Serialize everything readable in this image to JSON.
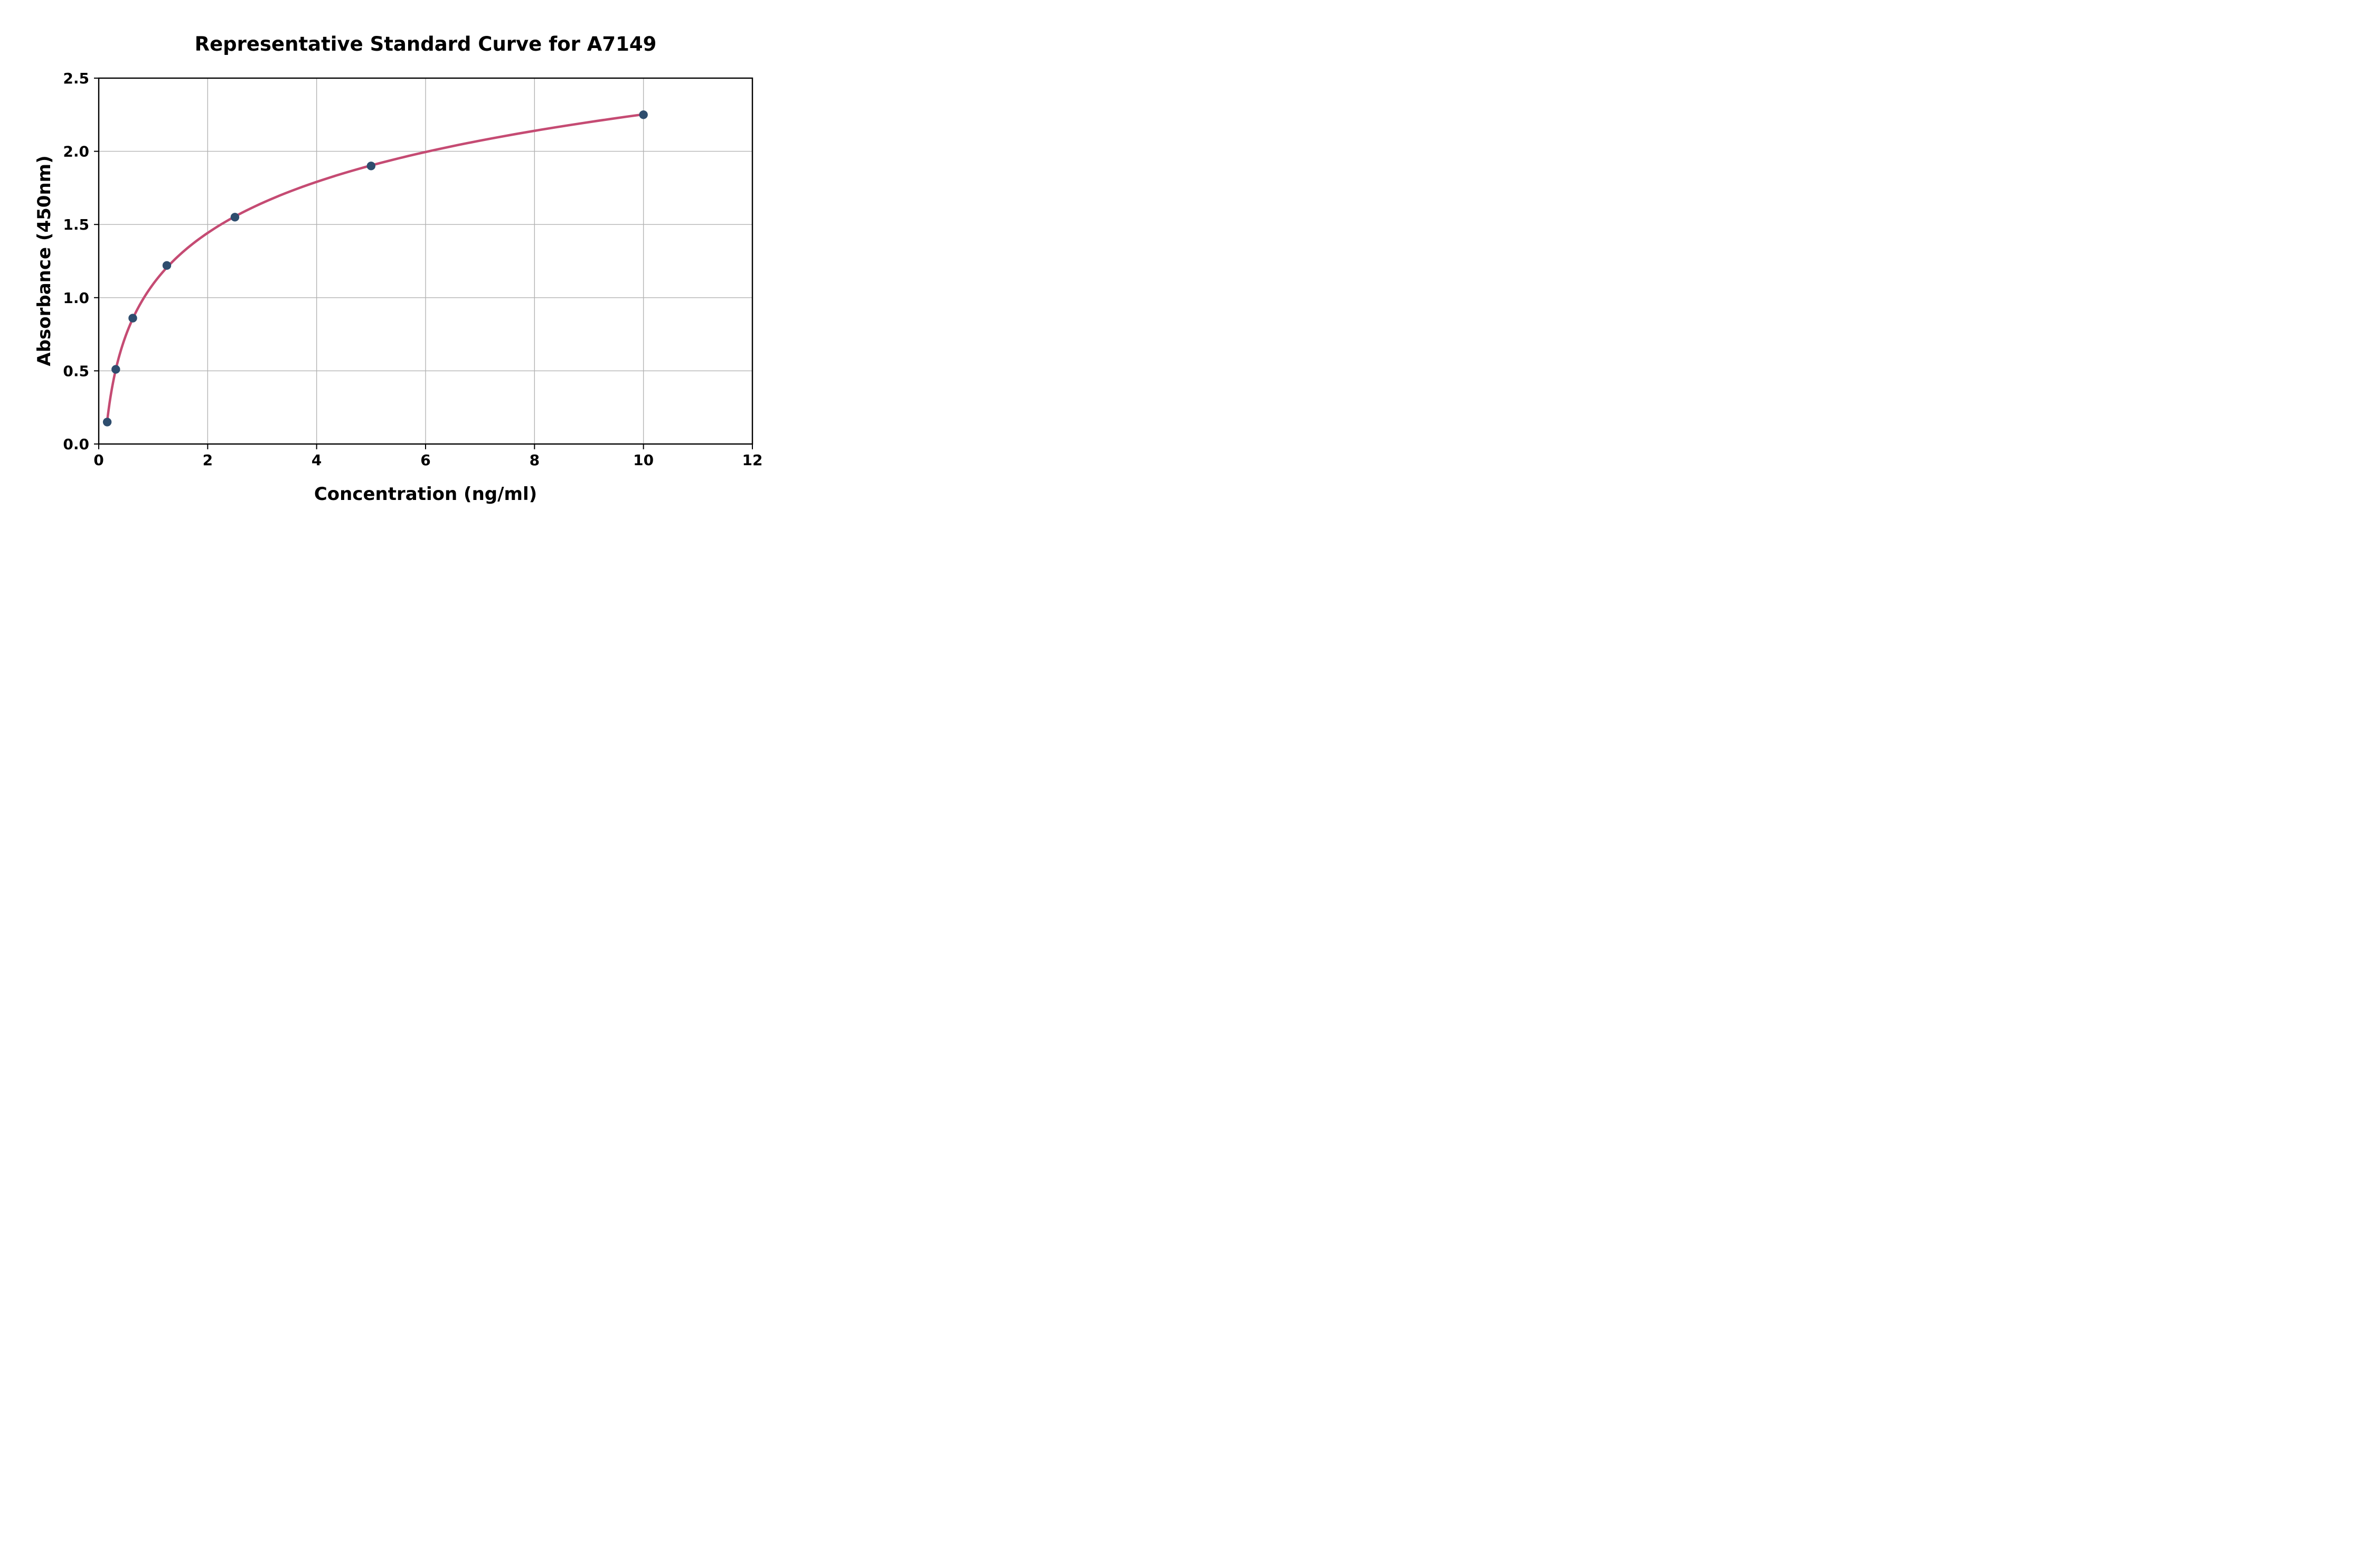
{
  "figure": {
    "background": "#ffffff"
  },
  "chart_data": {
    "type": "scatter",
    "fit_curve": "logarithmic",
    "title": "Representative Standard Curve for A7149",
    "xlabel": "Concentration (ng/ml)",
    "ylabel": "Absorbance (450nm)",
    "x": [
      0.156,
      0.313,
      0.625,
      1.25,
      2.5,
      5,
      10
    ],
    "y": [
      0.15,
      0.51,
      0.86,
      1.22,
      1.55,
      1.9,
      2.25
    ],
    "xlim": [
      0,
      12
    ],
    "ylim": [
      0,
      2.5
    ],
    "xticks": [
      "0",
      "2",
      "4",
      "6",
      "8",
      "10",
      "12"
    ],
    "xtick_values": [
      0,
      2,
      4,
      6,
      8,
      10,
      12
    ],
    "yticks": [
      "0.0",
      "0.5",
      "1.0",
      "1.5",
      "2.0",
      "2.5"
    ],
    "ytick_values": [
      0,
      0.5,
      1.0,
      1.5,
      2.0,
      2.5
    ],
    "grid": true,
    "legend": false,
    "colors": {
      "curve": "#C54B73",
      "marker": "#2E4D6E",
      "grid": "#B3B3B3",
      "spine": "#000000",
      "text": "#000000"
    }
  }
}
